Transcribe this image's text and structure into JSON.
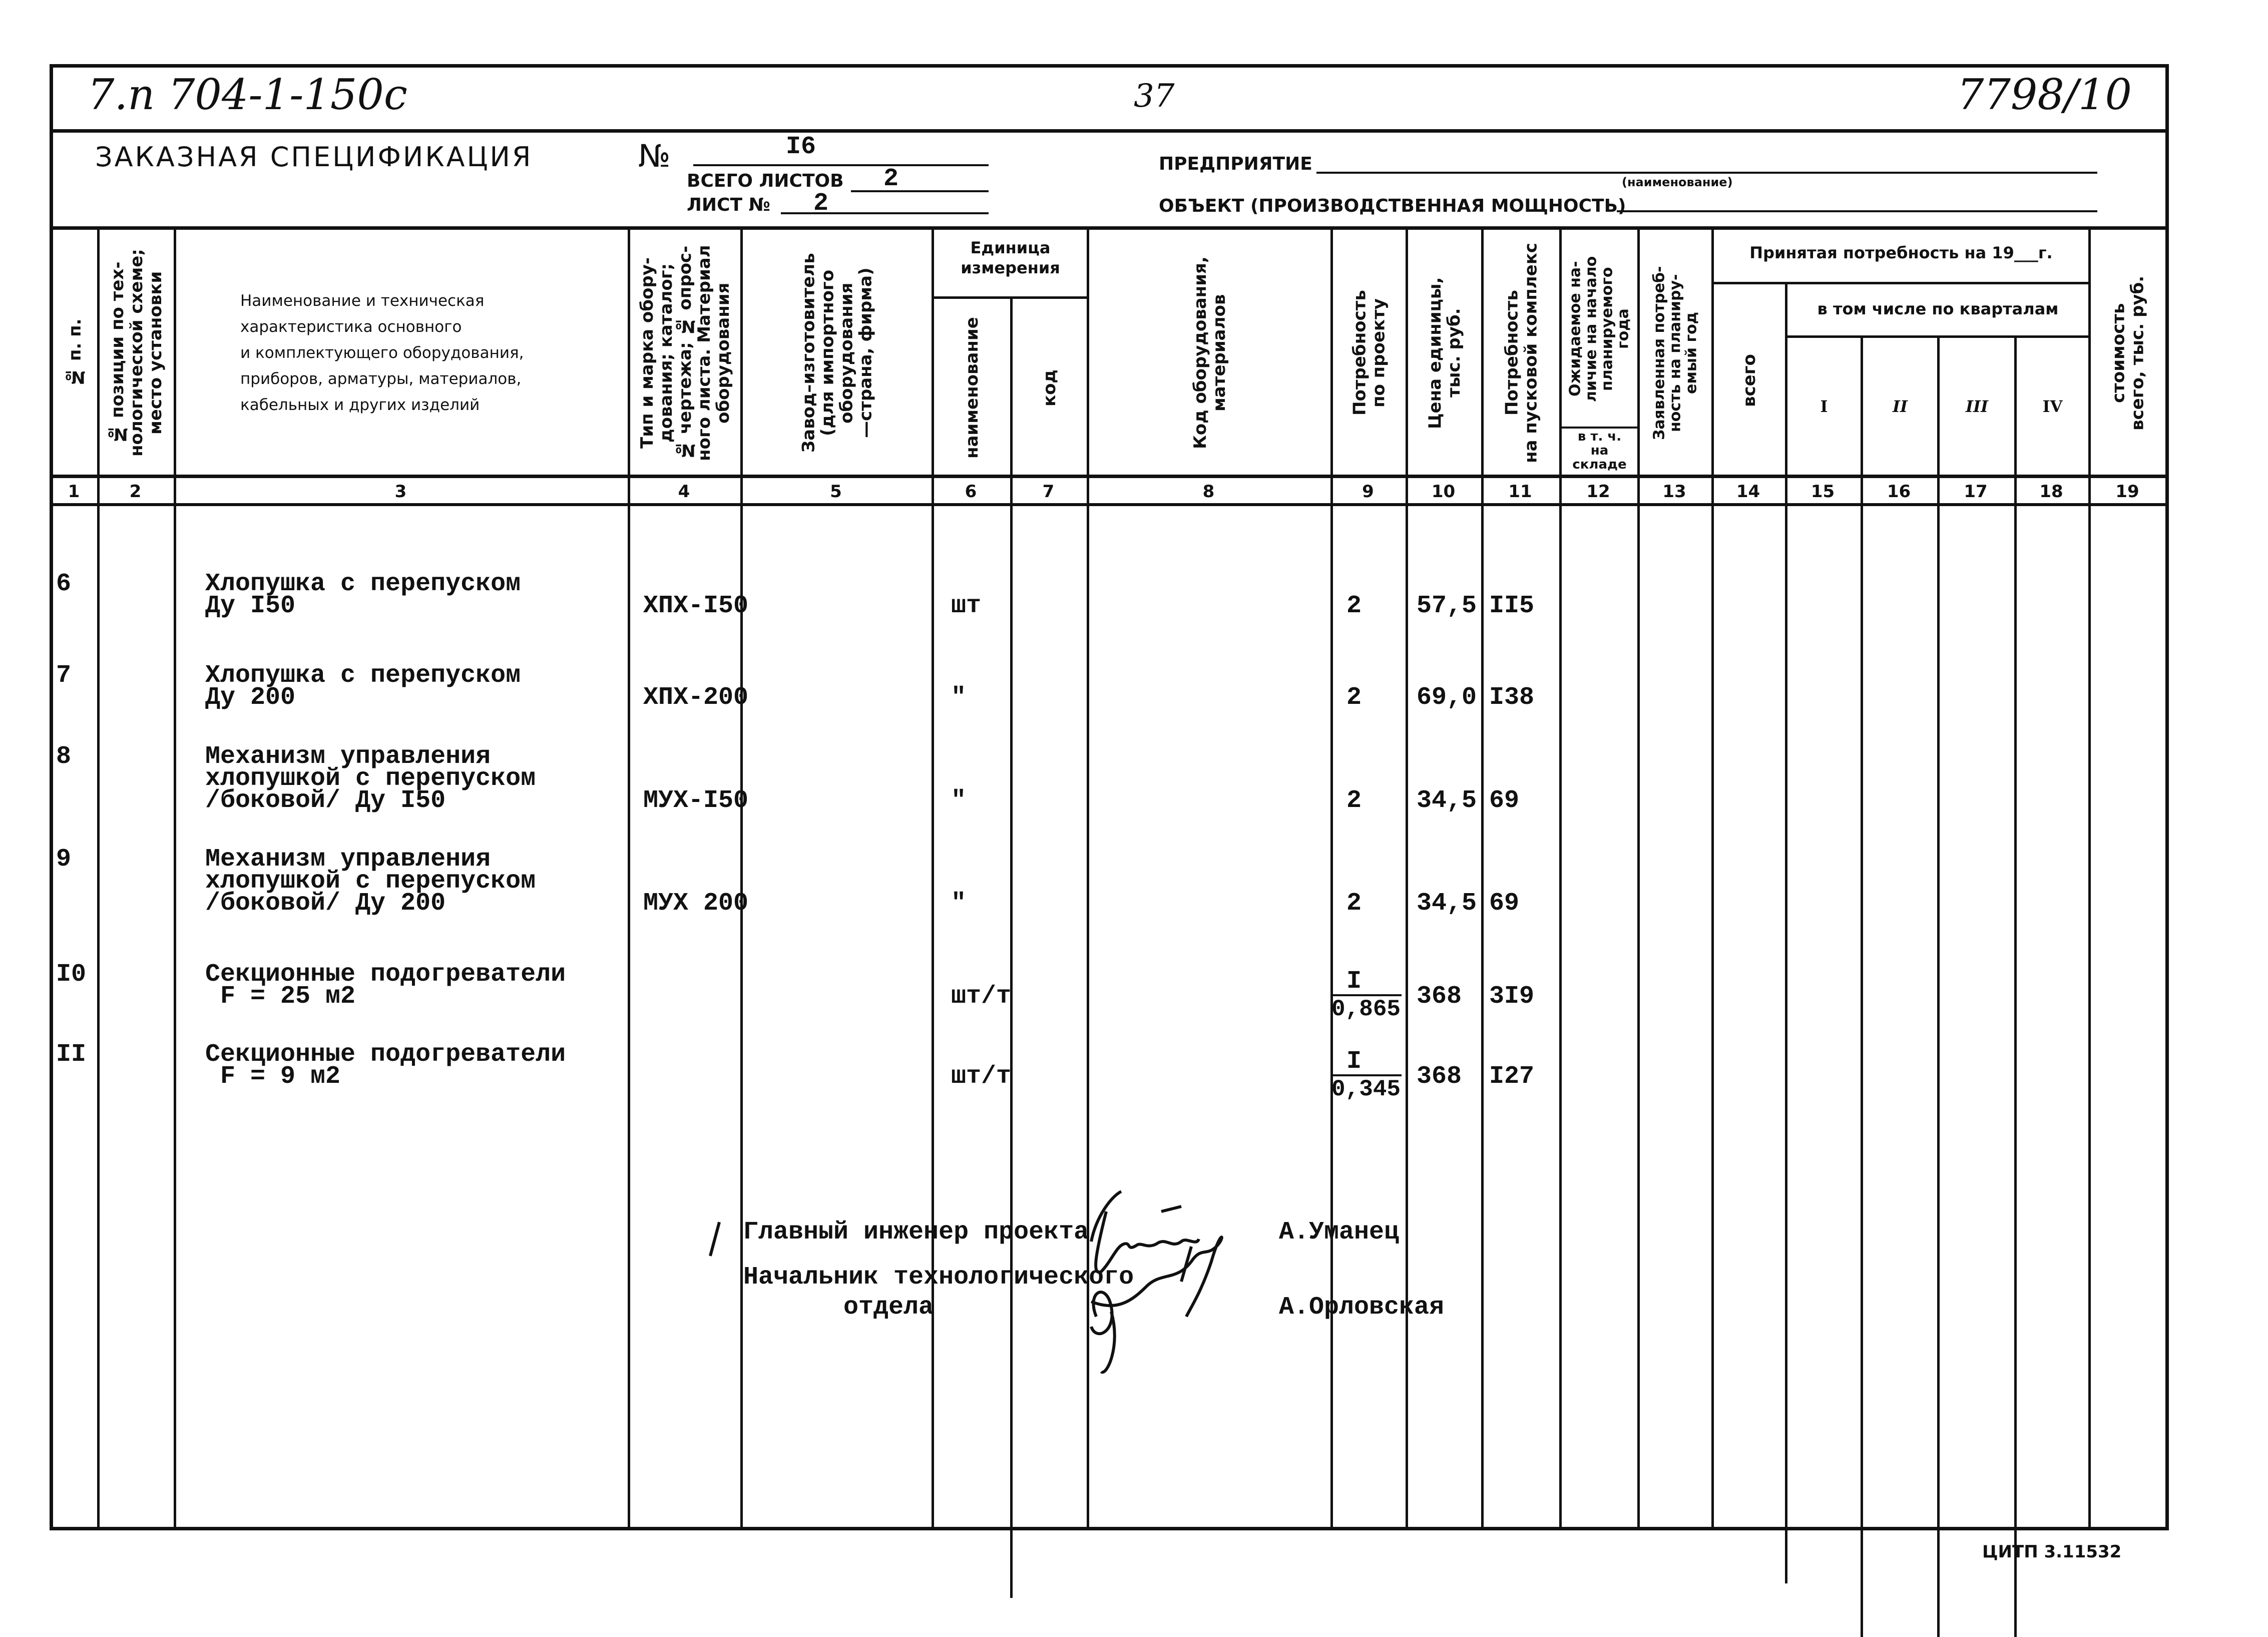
{
  "header": {
    "doc_code": "7.п 704-1-150с",
    "page_number": "37",
    "archive_number": "7798/10",
    "title": "ЗАКАЗНАЯ СПЕЦИФИКАЦИЯ",
    "number_label": "№",
    "number_value": "I6",
    "total_sheets_label": "ВСЕГО ЛИСТОВ",
    "total_sheets_value": "2",
    "sheet_label": "ЛИСТ №",
    "sheet_value": "2",
    "enterprise_label": "ПРЕДПРИЯТИЕ",
    "enterprise_sub": "(наименование)",
    "object_label": "ОБЪЕКТ (ПРОИЗВОДСТВЕННАЯ МОЩНОСТЬ)"
  },
  "columns": {
    "c1": "№ п. п.",
    "c2": "№ позиции по тех-\nнологической схеме;\nместо установки",
    "c3": "Наименование и техническая\nхарактеристика основного\nи комплектующего оборудования,\nприборов, арматуры, материалов,\nкабельных и других изделий",
    "c4": "Тип и марка обору-\nдования; каталог;\n№ чертежа; № опрос-\nного листа. Материал\nоборудования",
    "c5": "Завод–изготовитель\n(для импортного\nоборудования\n—страна, фирма)",
    "unit_group": "Единица\nизмерения",
    "c6": "наименование",
    "c7": "код",
    "c8": "Код оборудования,\nматериалов",
    "c9": "Потребность\nпо проекту",
    "c10": "Цена единицы,\nтыс. руб.",
    "c11": "Потребность\nна пусковой комплекс",
    "c12": "Ожидаемое на-\nличие на начало\nпланируемого\nгода",
    "c12_sub": "в т. ч.\nна\nскладе",
    "c13": "Заявленная потреб-\nность на планиру-\nемый год",
    "accepted_group": "Принятая потребность на 19___г.",
    "c14": "всего",
    "quarter_group": "в том числе по кварталам",
    "c15": "I",
    "c16": "II",
    "c17": "III",
    "c18": "IV",
    "c19": "стоимость\nвсего, тыс. руб.",
    "numbers": [
      "1",
      "2",
      "3",
      "4",
      "5",
      "6",
      "7",
      "8",
      "9",
      "10",
      "11",
      "12",
      "13",
      "14",
      "15",
      "16",
      "17",
      "18",
      "19"
    ]
  },
  "rows": [
    {
      "n": "6",
      "name": "Хлопушка с перепуском\nДу I50",
      "type": "ХПХ-I50",
      "unit": "шт",
      "qty": "2",
      "price": "57,5",
      "launch": "II5"
    },
    {
      "n": "7",
      "name": "Хлопушка с перепуском\nДу 200",
      "type": "ХПХ-200",
      "unit": "\"",
      "qty": "2",
      "price": "69,0",
      "launch": "I38"
    },
    {
      "n": "8",
      "name": "Механизм управления\nхлопушкой с перепуском\n/боковой/ Ду I50",
      "type": "МУХ-I50",
      "unit": "\"",
      "qty": "2",
      "price": "34,5",
      "launch": "69"
    },
    {
      "n": "9",
      "name": "Механизм управления\nхлопушкой с перепуском\n/боковой/ Ду 200",
      "type": "МУХ 200",
      "unit": "\"",
      "qty": "2",
      "price": "34,5",
      "launch": "69"
    },
    {
      "n": "I0",
      "name": "Секционные подогреватели\n F = 25 м2",
      "type": "",
      "unit": "шт/т",
      "qty": "I",
      "qty_sub": "0,865",
      "price": "368",
      "launch": "3I9"
    },
    {
      "n": "II",
      "name": "Секционные подогреватели\n F = 9 м2",
      "type": "",
      "unit": "шт/т",
      "qty": "I",
      "qty_sub": "0,345",
      "price": "368",
      "launch": "I27"
    }
  ],
  "signatures": {
    "chief_engineer_label": "Главный инженер проекта",
    "chief_engineer_name": "А.Уманец",
    "head_label_1": "Начальник технологического",
    "head_label_2": "отдела",
    "head_name": "А.Орловская"
  },
  "footer": {
    "print_code": "ЦИТП  3.11532"
  }
}
